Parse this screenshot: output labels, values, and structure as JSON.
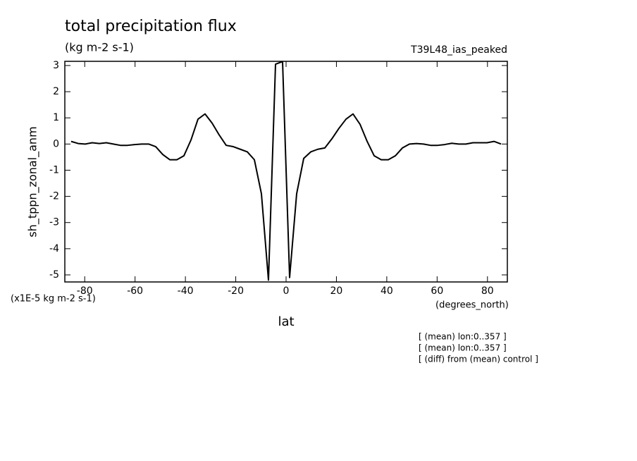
{
  "chart_data": {
    "type": "line",
    "title": "total precipitation flux",
    "subtitle": "(kg m-2 s-1)",
    "run_label": "T39L48_ias_peaked",
    "y_label": "sh_tppn_zonal_anm",
    "y_units": "(x1E-5 kg m-2 s-1)",
    "x_units": "(degrees_north)",
    "x_label": "lat",
    "notes": [
      "[ (mean) lon:0..357 ]",
      "[ (mean) lon:0..357 ]",
      "[ (diff) from (mean) control ]"
    ],
    "x": [
      -85.4,
      -82.6,
      -79.8,
      -77.0,
      -74.2,
      -71.4,
      -68.6,
      -65.8,
      -63.0,
      -60.2,
      -57.4,
      -54.6,
      -51.8,
      -49.0,
      -46.2,
      -43.4,
      -40.6,
      -37.8,
      -35.0,
      -32.2,
      -29.4,
      -26.6,
      -23.8,
      -21.0,
      -18.2,
      -15.4,
      -12.6,
      -9.8,
      -7.0,
      -4.2,
      -1.4,
      1.4,
      4.2,
      7.0,
      9.8,
      12.6,
      15.4,
      18.2,
      21.0,
      23.8,
      26.6,
      29.4,
      32.2,
      35.0,
      37.8,
      40.6,
      43.4,
      46.2,
      49.0,
      51.8,
      54.6,
      57.4,
      60.2,
      63.0,
      65.8,
      68.6,
      71.4,
      74.2,
      77.0,
      79.8,
      82.6,
      85.4
    ],
    "series": [
      {
        "name": "sh_tppn_zonal_anm",
        "color": "#000000",
        "values": [
          0.1,
          0.02,
          0.0,
          0.05,
          0.02,
          0.05,
          0.0,
          -0.05,
          -0.05,
          -0.02,
          0.0,
          0.0,
          -0.1,
          -0.4,
          -0.6,
          -0.6,
          -0.45,
          0.15,
          0.95,
          1.15,
          0.8,
          0.35,
          -0.05,
          -0.1,
          -0.2,
          -0.3,
          -0.6,
          -1.9,
          -5.2,
          3.05,
          3.15,
          -5.1,
          -1.9,
          -0.55,
          -0.3,
          -0.2,
          -0.15,
          0.2,
          0.6,
          0.95,
          1.15,
          0.75,
          0.1,
          -0.45,
          -0.6,
          -0.6,
          -0.45,
          -0.15,
          0.0,
          0.02,
          0.0,
          -0.05,
          -0.05,
          -0.02,
          0.03,
          0.0,
          0.0,
          0.05,
          0.05,
          0.05,
          0.1,
          0.0
        ]
      }
    ],
    "xlim": [
      -87.9,
      87.9
    ],
    "ylim": [
      -5.27,
      3.16
    ],
    "xticks": [
      -80,
      -60,
      -40,
      -20,
      0,
      20,
      40,
      60,
      80
    ],
    "yticks": [
      -5,
      -4,
      -3,
      -2,
      -1,
      0,
      1,
      2,
      3
    ]
  }
}
